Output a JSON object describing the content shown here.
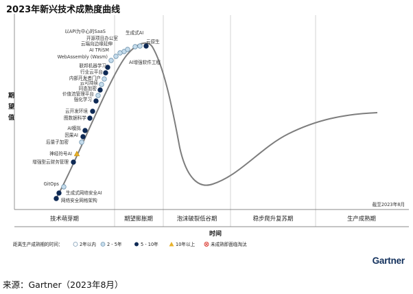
{
  "title": "2023年新兴技术成熟度曲线",
  "y_axis_label": "期望值",
  "x_axis_label": "时间",
  "as_of": "截至2023年8月",
  "brand": "Gartner",
  "source": "来源：Gartner（2023年8月）",
  "legend": {
    "title": "距离生产成熟期的时间：",
    "items": [
      {
        "key": "lt2",
        "label": "2年以内",
        "color": "#ffffff"
      },
      {
        "key": "y2_5",
        "label": "2 - 5年",
        "color": "#c5dcec"
      },
      {
        "key": "y5_10",
        "label": "5 - 10年",
        "color": "#0f2a55"
      },
      {
        "key": "gt10",
        "label": "10年以上",
        "color": "#e8b22a"
      },
      {
        "key": "obsolete",
        "label": "未成熟即面临淘汰",
        "color": "#d9342b"
      }
    ]
  },
  "chart_data": {
    "type": "hype-cycle",
    "title": "2023年新兴技术成熟度曲线",
    "xlabel": "时间",
    "ylabel": "期望值",
    "phases": [
      "技术萌芽期",
      "期望膨胀期",
      "泡沫破裂低谷期",
      "稳步爬升复苏期",
      "生产成熟期"
    ],
    "technologies": [
      {
        "name": "网络安全网格架构",
        "phase": "技术萌芽期",
        "position": 0.03,
        "category": "5 - 10年"
      },
      {
        "name": "生成式网络安全AI",
        "phase": "技术萌芽期",
        "position": 0.06,
        "category": "5 - 10年"
      },
      {
        "name": "GitOps",
        "phase": "技术萌芽期",
        "position": 0.1,
        "category": "2 - 5年"
      },
      {
        "name": "增强型云财务管理",
        "phase": "技术萌芽期",
        "position": 0.22,
        "category": "5 - 10年"
      },
      {
        "name": "神经符号AI",
        "phase": "技术萌芽期",
        "position": 0.25,
        "category": "10年以上"
      },
      {
        "name": "后量子加密",
        "phase": "技术萌芽期",
        "position": 0.3,
        "category": "2 - 5年"
      },
      {
        "name": "因果AI",
        "phase": "技术萌芽期",
        "position": 0.33,
        "category": "5 - 10年"
      },
      {
        "name": "AI模拟",
        "phase": "技术萌芽期",
        "position": 0.36,
        "category": "5 - 10年"
      },
      {
        "name": "图数据科学",
        "phase": "技术萌芽期",
        "position": 0.42,
        "category": "5 - 10年"
      },
      {
        "name": "云开发环境",
        "phase": "技术萌芽期",
        "position": 0.45,
        "category": "5 - 10年"
      },
      {
        "name": "强化学习",
        "phase": "技术萌芽期",
        "position": 0.52,
        "category": "5 - 10年"
      },
      {
        "name": "价值流管理平台",
        "phase": "技术萌芽期",
        "position": 0.55,
        "category": "2 - 5年"
      },
      {
        "name": "同态加密",
        "phase": "技术萌芽期",
        "position": 0.58,
        "category": "5 - 10年"
      },
      {
        "name": "云可持续",
        "phase": "技术萌芽期",
        "position": 0.61,
        "category": "2 - 5年"
      },
      {
        "name": "内部开发者门户",
        "phase": "技术萌芽期",
        "position": 0.64,
        "category": "2 - 5年"
      },
      {
        "name": "行业云平台",
        "phase": "技术萌芽期",
        "position": 0.67,
        "category": "5 - 10年"
      },
      {
        "name": "联邦机器学习",
        "phase": "技术萌芽期",
        "position": 0.7,
        "category": "5 - 10年"
      },
      {
        "name": "WebAssembly (Wasm)",
        "phase": "技术萌芽期",
        "position": 0.76,
        "category": "2 - 5年"
      },
      {
        "name": "AI TRiSM",
        "phase": "技术萌芽期",
        "position": 0.79,
        "category": "2 - 5年"
      },
      {
        "name": "云端向边缘延伸",
        "phase": "技术萌芽期",
        "position": 0.82,
        "category": "2 - 5年"
      },
      {
        "name": "开源项目办公室",
        "phase": "期望膨胀期",
        "position": 0.85,
        "category": "2 - 5年"
      },
      {
        "name": "以API为中心的SaaS",
        "phase": "期望膨胀期",
        "position": 0.88,
        "category": "2 - 5年"
      },
      {
        "name": "生成式AI",
        "phase": "期望膨胀期",
        "position": 0.92,
        "category": "2 - 5年"
      },
      {
        "name": "AI增强软件工程",
        "phase": "期望膨胀期",
        "position": 0.95,
        "category": "5 - 10年"
      },
      {
        "name": "云原生",
        "phase": "期望膨胀期",
        "position": 0.98,
        "category": "2 - 5年"
      }
    ]
  }
}
